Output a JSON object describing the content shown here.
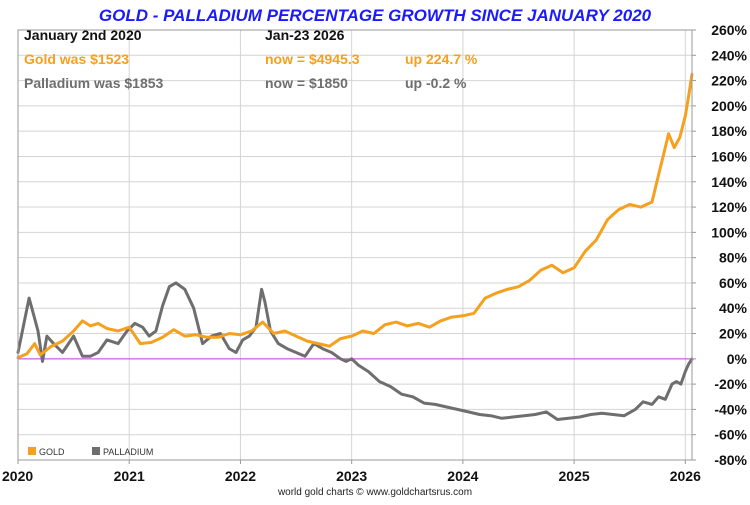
{
  "title": "GOLD - PALLADIUM PERCENTAGE GROWTH SINCE JANUARY 2020",
  "info": {
    "start_label": "January 2nd 2020",
    "end_label": "Jan-23  2026",
    "gold_was": "Gold was $1523",
    "gold_now": "now = $4945.3",
    "gold_up": "up 224.7 %",
    "pall_was": "Palladium was $1853",
    "pall_now": "now = $1850",
    "pall_up": "up -0.2 %"
  },
  "footer": "world gold charts © www.goldchartsrus.com",
  "colors": {
    "gold": "#f5a01e",
    "palladium": "#6e6e6e",
    "title": "#1a1aff",
    "zero_line": "#c040e0",
    "grid": "#d4d4d4"
  },
  "chart_data": {
    "type": "line",
    "title": "GOLD - PALLADIUM PERCENTAGE GROWTH SINCE JANUARY 2020",
    "xlabel": "",
    "ylabel": "",
    "x_tick_labels": [
      "2020",
      "2021",
      "2022",
      "2023",
      "2024",
      "2025",
      "2026"
    ],
    "y_tick_labels": [
      "260%",
      "240%",
      "220%",
      "200%",
      "180%",
      "160%",
      "140%",
      "120%",
      "100%",
      "80%",
      "60%",
      "40%",
      "20%",
      "0%",
      "-20%",
      "-40%",
      "-60%",
      "-80%"
    ],
    "ylim": [
      -80,
      260
    ],
    "xlim": [
      2020.0,
      2026.06
    ],
    "grid": true,
    "legend_position": "bottom-left",
    "legend": [
      "GOLD",
      "PALLADIUM"
    ],
    "series": [
      {
        "name": "GOLD",
        "color": "#f5a01e",
        "x": [
          2020.0,
          2020.08,
          2020.15,
          2020.2,
          2020.3,
          2020.4,
          2020.5,
          2020.58,
          2020.65,
          2020.72,
          2020.8,
          2020.9,
          2021.0,
          2021.1,
          2021.2,
          2021.3,
          2021.4,
          2021.5,
          2021.6,
          2021.7,
          2021.8,
          2021.9,
          2022.0,
          2022.1,
          2022.2,
          2022.3,
          2022.4,
          2022.5,
          2022.6,
          2022.7,
          2022.8,
          2022.9,
          2023.0,
          2023.1,
          2023.2,
          2023.3,
          2023.4,
          2023.5,
          2023.6,
          2023.7,
          2023.8,
          2023.9,
          2024.0,
          2024.1,
          2024.2,
          2024.3,
          2024.4,
          2024.5,
          2024.6,
          2024.7,
          2024.8,
          2024.9,
          2025.0,
          2025.1,
          2025.2,
          2025.3,
          2025.4,
          2025.5,
          2025.6,
          2025.7,
          2025.75,
          2025.8,
          2025.85,
          2025.9,
          2025.95,
          2026.0,
          2026.03,
          2026.06
        ],
        "values": [
          1,
          4,
          12,
          3,
          10,
          14,
          22,
          30,
          26,
          28,
          24,
          22,
          25,
          12,
          13,
          17,
          23,
          18,
          19,
          17,
          17,
          20,
          19,
          22,
          29,
          20,
          22,
          18,
          14,
          12,
          10,
          16,
          18,
          22,
          20,
          27,
          29,
          26,
          28,
          25,
          30,
          33,
          34,
          36,
          48,
          52,
          55,
          57,
          62,
          70,
          74,
          68,
          72,
          85,
          94,
          110,
          118,
          122,
          120,
          124,
          142,
          160,
          178,
          167,
          175,
          192,
          208,
          225
        ]
      },
      {
        "name": "PALLADIUM",
        "color": "#6e6e6e",
        "x": [
          2020.0,
          2020.04,
          2020.1,
          2020.14,
          2020.18,
          2020.22,
          2020.26,
          2020.32,
          2020.4,
          2020.5,
          2020.58,
          2020.65,
          2020.72,
          2020.8,
          2020.9,
          2020.98,
          2021.05,
          2021.12,
          2021.18,
          2021.24,
          2021.3,
          2021.36,
          2021.42,
          2021.5,
          2021.58,
          2021.66,
          2021.74,
          2021.82,
          2021.9,
          2021.96,
          2022.02,
          2022.08,
          2022.14,
          2022.19,
          2022.22,
          2022.27,
          2022.34,
          2022.42,
          2022.5,
          2022.58,
          2022.66,
          2022.74,
          2022.82,
          2022.9,
          2022.95,
          2023.0,
          2023.06,
          2023.15,
          2023.25,
          2023.35,
          2023.45,
          2023.55,
          2023.65,
          2023.75,
          2023.85,
          2023.95,
          2024.05,
          2024.15,
          2024.25,
          2024.35,
          2024.45,
          2024.55,
          2024.65,
          2024.75,
          2024.85,
          2024.95,
          2025.05,
          2025.15,
          2025.25,
          2025.35,
          2025.45,
          2025.55,
          2025.62,
          2025.7,
          2025.76,
          2025.82,
          2025.88,
          2025.92,
          2025.96,
          2026.0,
          2026.03,
          2026.06
        ],
        "values": [
          5,
          22,
          48,
          35,
          22,
          -2,
          18,
          12,
          5,
          18,
          2,
          2,
          5,
          15,
          12,
          22,
          28,
          25,
          18,
          22,
          42,
          57,
          60,
          55,
          40,
          12,
          18,
          20,
          8,
          5,
          15,
          18,
          25,
          55,
          45,
          22,
          12,
          8,
          5,
          2,
          12,
          8,
          5,
          0,
          -2,
          0,
          -5,
          -10,
          -18,
          -22,
          -28,
          -30,
          -35,
          -36,
          -38,
          -40,
          -42,
          -44,
          -45,
          -47,
          -46,
          -45,
          -44,
          -42,
          -48,
          -47,
          -46,
          -44,
          -43,
          -44,
          -45,
          -40,
          -34,
          -36,
          -30,
          -32,
          -20,
          -18,
          -20,
          -10,
          -4,
          -0.2
        ]
      }
    ]
  }
}
